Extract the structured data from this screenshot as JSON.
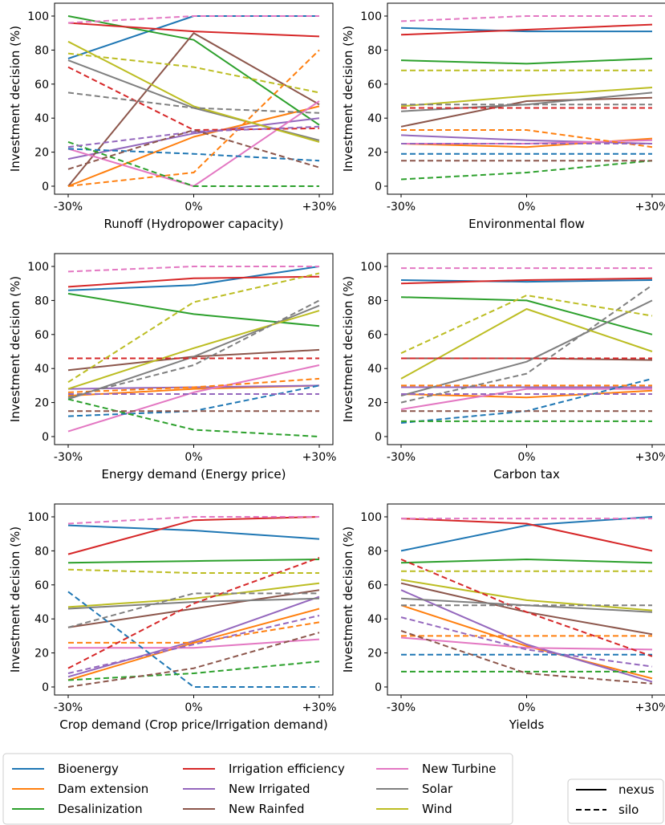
{
  "figure": {
    "ylabel": "Investment decision (%)",
    "x_ticks": [
      "-30%",
      "0%",
      "+30%"
    ],
    "y_ticks": [
      "0",
      "20",
      "40",
      "60",
      "80",
      "100"
    ]
  },
  "colors": {
    "Bioenergy": "#1f77b4",
    "Dam extension": "#ff7f0e",
    "Desalinization": "#2ca02c",
    "Irrigation efficiency": "#d62728",
    "New Irrigated": "#9467bd",
    "New Rainfed": "#8c564b",
    "New Turbine": "#e377c2",
    "Solar": "#7f7f7f",
    "Wind": "#bcbd22"
  },
  "legend": {
    "entries": [
      "Bioenergy",
      "Dam extension",
      "Desalinization",
      "Irrigation efficiency",
      "New Irrigated",
      "New Rainfed",
      "New Turbine",
      "Solar",
      "Wind"
    ],
    "style_entries": [
      "nexus",
      "silo"
    ]
  },
  "chart_data": [
    {
      "type": "line",
      "xlabel": "Runoff (Hydropower capacity)",
      "x": [
        "-30%",
        "0%",
        "+30%"
      ],
      "ylim": [
        0,
        100
      ],
      "series": [
        {
          "name": "Bioenergy",
          "style": "nexus",
          "values": [
            75,
            100,
            100
          ]
        },
        {
          "name": "Dam extension",
          "style": "nexus",
          "values": [
            0,
            29,
            47
          ]
        },
        {
          "name": "Desalinization",
          "style": "nexus",
          "values": [
            100,
            86,
            36
          ]
        },
        {
          "name": "Irrigation efficiency",
          "style": "nexus",
          "values": [
            96,
            91,
            88
          ]
        },
        {
          "name": "New Irrigated",
          "style": "nexus",
          "values": [
            16,
            31,
            40
          ]
        },
        {
          "name": "New Rainfed",
          "style": "nexus",
          "values": [
            0,
            90,
            48
          ]
        },
        {
          "name": "New Turbine",
          "style": "nexus",
          "values": [
            22,
            0,
            50
          ]
        },
        {
          "name": "Solar",
          "style": "nexus",
          "values": [
            74,
            46,
            27
          ]
        },
        {
          "name": "Wind",
          "style": "nexus",
          "values": [
            85,
            47,
            26
          ]
        },
        {
          "name": "Bioenergy",
          "style": "silo",
          "values": [
            22,
            19,
            15
          ]
        },
        {
          "name": "Dam extension",
          "style": "silo",
          "values": [
            0,
            8,
            80
          ]
        },
        {
          "name": "Desalinization",
          "style": "silo",
          "values": [
            26,
            0,
            0
          ]
        },
        {
          "name": "Irrigation efficiency",
          "style": "silo",
          "values": [
            70,
            33,
            34
          ]
        },
        {
          "name": "New Irrigated",
          "style": "silo",
          "values": [
            23,
            32,
            35
          ]
        },
        {
          "name": "New Rainfed",
          "style": "silo",
          "values": [
            10,
            33,
            11
          ]
        },
        {
          "name": "New Turbine",
          "style": "silo",
          "values": [
            96,
            100,
            100
          ]
        },
        {
          "name": "Solar",
          "style": "silo",
          "values": [
            55,
            46,
            43
          ]
        },
        {
          "name": "Wind",
          "style": "silo",
          "values": [
            78,
            70,
            55
          ]
        }
      ]
    },
    {
      "type": "line",
      "xlabel": "Environmental flow",
      "x": [
        "-30%",
        "0%",
        "+30%"
      ],
      "ylim": [
        0,
        100
      ],
      "series": [
        {
          "name": "Bioenergy",
          "style": "nexus",
          "values": [
            93,
            91,
            91
          ]
        },
        {
          "name": "Dam extension",
          "style": "nexus",
          "values": [
            25,
            23,
            28
          ]
        },
        {
          "name": "Desalinization",
          "style": "nexus",
          "values": [
            74,
            72,
            75
          ]
        },
        {
          "name": "Irrigation efficiency",
          "style": "nexus",
          "values": [
            89,
            92,
            95
          ]
        },
        {
          "name": "New Irrigated",
          "style": "nexus",
          "values": [
            30,
            27,
            25
          ]
        },
        {
          "name": "New Rainfed",
          "style": "nexus",
          "values": [
            35,
            50,
            52
          ]
        },
        {
          "name": "New Turbine",
          "style": "nexus",
          "values": [
            25,
            25,
            27
          ]
        },
        {
          "name": "Solar",
          "style": "nexus",
          "values": [
            44,
            48,
            55
          ]
        },
        {
          "name": "Wind",
          "style": "nexus",
          "values": [
            47,
            53,
            58
          ]
        },
        {
          "name": "Bioenergy",
          "style": "silo",
          "values": [
            19,
            19,
            19
          ]
        },
        {
          "name": "Dam extension",
          "style": "silo",
          "values": [
            33,
            33,
            23
          ]
        },
        {
          "name": "Desalinization",
          "style": "silo",
          "values": [
            4,
            8,
            15
          ]
        },
        {
          "name": "Irrigation efficiency",
          "style": "silo",
          "values": [
            46,
            46,
            46
          ]
        },
        {
          "name": "New Irrigated",
          "style": "silo",
          "values": [
            25,
            25,
            25
          ]
        },
        {
          "name": "New Rainfed",
          "style": "silo",
          "values": [
            15,
            15,
            15
          ]
        },
        {
          "name": "New Turbine",
          "style": "silo",
          "values": [
            97,
            100,
            100
          ]
        },
        {
          "name": "Solar",
          "style": "silo",
          "values": [
            48,
            48,
            48
          ]
        },
        {
          "name": "Wind",
          "style": "silo",
          "values": [
            68,
            68,
            68
          ]
        }
      ]
    },
    {
      "type": "line",
      "xlabel": "Energy demand (Energy price)",
      "x": [
        "-30%",
        "0%",
        "+30%"
      ],
      "ylim": [
        0,
        100
      ],
      "series": [
        {
          "name": "Bioenergy",
          "style": "nexus",
          "values": [
            86,
            89,
            100
          ]
        },
        {
          "name": "Dam extension",
          "style": "nexus",
          "values": [
            24,
            28,
            30
          ]
        },
        {
          "name": "Desalinization",
          "style": "nexus",
          "values": [
            84,
            72,
            65
          ]
        },
        {
          "name": "Irrigation efficiency",
          "style": "nexus",
          "values": [
            88,
            93,
            94
          ]
        },
        {
          "name": "New Irrigated",
          "style": "nexus",
          "values": [
            28,
            29,
            30
          ]
        },
        {
          "name": "New Rainfed",
          "style": "nexus",
          "values": [
            39,
            47,
            51
          ]
        },
        {
          "name": "New Turbine",
          "style": "nexus",
          "values": [
            3,
            26,
            42
          ]
        },
        {
          "name": "Solar",
          "style": "nexus",
          "values": [
            22,
            47,
            77
          ]
        },
        {
          "name": "Wind",
          "style": "nexus",
          "values": [
            28,
            52,
            74
          ]
        },
        {
          "name": "Bioenergy",
          "style": "silo",
          "values": [
            12,
            15,
            30
          ]
        },
        {
          "name": "Dam extension",
          "style": "silo",
          "values": [
            26,
            29,
            34
          ]
        },
        {
          "name": "Desalinization",
          "style": "silo",
          "values": [
            22,
            4,
            0
          ]
        },
        {
          "name": "Irrigation efficiency",
          "style": "silo",
          "values": [
            46,
            46,
            46
          ]
        },
        {
          "name": "New Irrigated",
          "style": "silo",
          "values": [
            25,
            25,
            25
          ]
        },
        {
          "name": "New Rainfed",
          "style": "silo",
          "values": [
            15,
            15,
            15
          ]
        },
        {
          "name": "New Turbine",
          "style": "silo",
          "values": [
            97,
            100,
            100
          ]
        },
        {
          "name": "Solar",
          "style": "silo",
          "values": [
            23,
            42,
            80
          ]
        },
        {
          "name": "Wind",
          "style": "silo",
          "values": [
            32,
            79,
            96
          ]
        }
      ]
    },
    {
      "type": "line",
      "xlabel": "Carbon tax",
      "x": [
        "-30%",
        "0%",
        "+30%"
      ],
      "ylim": [
        0,
        100
      ],
      "series": [
        {
          "name": "Bioenergy",
          "style": "nexus",
          "values": [
            92,
            91,
            92
          ]
        },
        {
          "name": "Dam extension",
          "style": "nexus",
          "values": [
            25,
            23,
            27
          ]
        },
        {
          "name": "Desalinization",
          "style": "nexus",
          "values": [
            82,
            80,
            60
          ]
        },
        {
          "name": "Irrigation efficiency",
          "style": "nexus",
          "values": [
            90,
            92,
            93
          ]
        },
        {
          "name": "New Irrigated",
          "style": "nexus",
          "values": [
            29,
            29,
            29
          ]
        },
        {
          "name": "New Rainfed",
          "style": "nexus",
          "values": [
            46,
            46,
            45
          ]
        },
        {
          "name": "New Turbine",
          "style": "nexus",
          "values": [
            16,
            28,
            28
          ]
        },
        {
          "name": "Solar",
          "style": "nexus",
          "values": [
            24,
            44,
            80
          ]
        },
        {
          "name": "Wind",
          "style": "nexus",
          "values": [
            34,
            75,
            50
          ]
        },
        {
          "name": "Bioenergy",
          "style": "silo",
          "values": [
            8,
            15,
            34
          ]
        },
        {
          "name": "Dam extension",
          "style": "silo",
          "values": [
            30,
            30,
            30
          ]
        },
        {
          "name": "Desalinization",
          "style": "silo",
          "values": [
            9,
            9,
            9
          ]
        },
        {
          "name": "Irrigation efficiency",
          "style": "silo",
          "values": [
            46,
            46,
            46
          ]
        },
        {
          "name": "New Irrigated",
          "style": "silo",
          "values": [
            25,
            25,
            25
          ]
        },
        {
          "name": "New Rainfed",
          "style": "silo",
          "values": [
            15,
            15,
            15
          ]
        },
        {
          "name": "New Turbine",
          "style": "silo",
          "values": [
            99,
            99,
            99
          ]
        },
        {
          "name": "Solar",
          "style": "silo",
          "values": [
            20,
            37,
            89
          ]
        },
        {
          "name": "Wind",
          "style": "silo",
          "values": [
            49,
            83,
            71
          ]
        }
      ]
    },
    {
      "type": "line",
      "xlabel": "Crop demand (Crop price/Irrigation demand)",
      "x": [
        "-30%",
        "0%",
        "+30%"
      ],
      "ylim": [
        0,
        100
      ],
      "series": [
        {
          "name": "Bioenergy",
          "style": "nexus",
          "values": [
            95,
            92,
            87
          ]
        },
        {
          "name": "Dam extension",
          "style": "nexus",
          "values": [
            4,
            26,
            46
          ]
        },
        {
          "name": "Desalinization",
          "style": "nexus",
          "values": [
            73,
            74,
            75
          ]
        },
        {
          "name": "Irrigation efficiency",
          "style": "nexus",
          "values": [
            78,
            98,
            100
          ]
        },
        {
          "name": "New Irrigated",
          "style": "nexus",
          "values": [
            6,
            27,
            53
          ]
        },
        {
          "name": "New Rainfed",
          "style": "nexus",
          "values": [
            35,
            46,
            57
          ]
        },
        {
          "name": "New Turbine",
          "style": "nexus",
          "values": [
            23,
            23,
            28
          ]
        },
        {
          "name": "Solar",
          "style": "nexus",
          "values": [
            46,
            50,
            52
          ]
        },
        {
          "name": "Wind",
          "style": "nexus",
          "values": [
            47,
            52,
            61
          ]
        },
        {
          "name": "Bioenergy",
          "style": "silo",
          "values": [
            56,
            0,
            0
          ]
        },
        {
          "name": "Dam extension",
          "style": "silo",
          "values": [
            26,
            26,
            38
          ]
        },
        {
          "name": "Desalinization",
          "style": "silo",
          "values": [
            4,
            8,
            15
          ]
        },
        {
          "name": "Irrigation efficiency",
          "style": "silo",
          "values": [
            11,
            49,
            76
          ]
        },
        {
          "name": "New Irrigated",
          "style": "silo",
          "values": [
            8,
            25,
            42
          ]
        },
        {
          "name": "New Rainfed",
          "style": "silo",
          "values": [
            0,
            11,
            32
          ]
        },
        {
          "name": "New Turbine",
          "style": "silo",
          "values": [
            96,
            100,
            100
          ]
        },
        {
          "name": "Solar",
          "style": "silo",
          "values": [
            35,
            55,
            55
          ]
        },
        {
          "name": "Wind",
          "style": "silo",
          "values": [
            69,
            67,
            67
          ]
        }
      ]
    },
    {
      "type": "line",
      "xlabel": "Yields",
      "x": [
        "-30%",
        "0%",
        "+30%"
      ],
      "ylim": [
        0,
        100
      ],
      "series": [
        {
          "name": "Bioenergy",
          "style": "nexus",
          "values": [
            80,
            95,
            100
          ]
        },
        {
          "name": "Dam extension",
          "style": "nexus",
          "values": [
            48,
            24,
            5
          ]
        },
        {
          "name": "Desalinization",
          "style": "nexus",
          "values": [
            73,
            75,
            73
          ]
        },
        {
          "name": "Irrigation efficiency",
          "style": "nexus",
          "values": [
            99,
            96,
            80
          ]
        },
        {
          "name": "New Irrigated",
          "style": "nexus",
          "values": [
            57,
            25,
            3
          ]
        },
        {
          "name": "New Rainfed",
          "style": "nexus",
          "values": [
            61,
            44,
            31
          ]
        },
        {
          "name": "New Turbine",
          "style": "nexus",
          "values": [
            29,
            23,
            22
          ]
        },
        {
          "name": "Solar",
          "style": "nexus",
          "values": [
            52,
            48,
            44
          ]
        },
        {
          "name": "Wind",
          "style": "nexus",
          "values": [
            63,
            51,
            45
          ]
        },
        {
          "name": "Bioenergy",
          "style": "silo",
          "values": [
            19,
            19,
            19
          ]
        },
        {
          "name": "Dam extension",
          "style": "silo",
          "values": [
            30,
            30,
            30
          ]
        },
        {
          "name": "Desalinization",
          "style": "silo",
          "values": [
            9,
            9,
            9
          ]
        },
        {
          "name": "Irrigation efficiency",
          "style": "silo",
          "values": [
            75,
            44,
            18
          ]
        },
        {
          "name": "New Irrigated",
          "style": "silo",
          "values": [
            41,
            22,
            12
          ]
        },
        {
          "name": "New Rainfed",
          "style": "silo",
          "values": [
            33,
            8,
            2
          ]
        },
        {
          "name": "New Turbine",
          "style": "silo",
          "values": [
            99,
            99,
            99
          ]
        },
        {
          "name": "Solar",
          "style": "silo",
          "values": [
            48,
            48,
            48
          ]
        },
        {
          "name": "Wind",
          "style": "silo",
          "values": [
            68,
            68,
            68
          ]
        }
      ]
    }
  ]
}
